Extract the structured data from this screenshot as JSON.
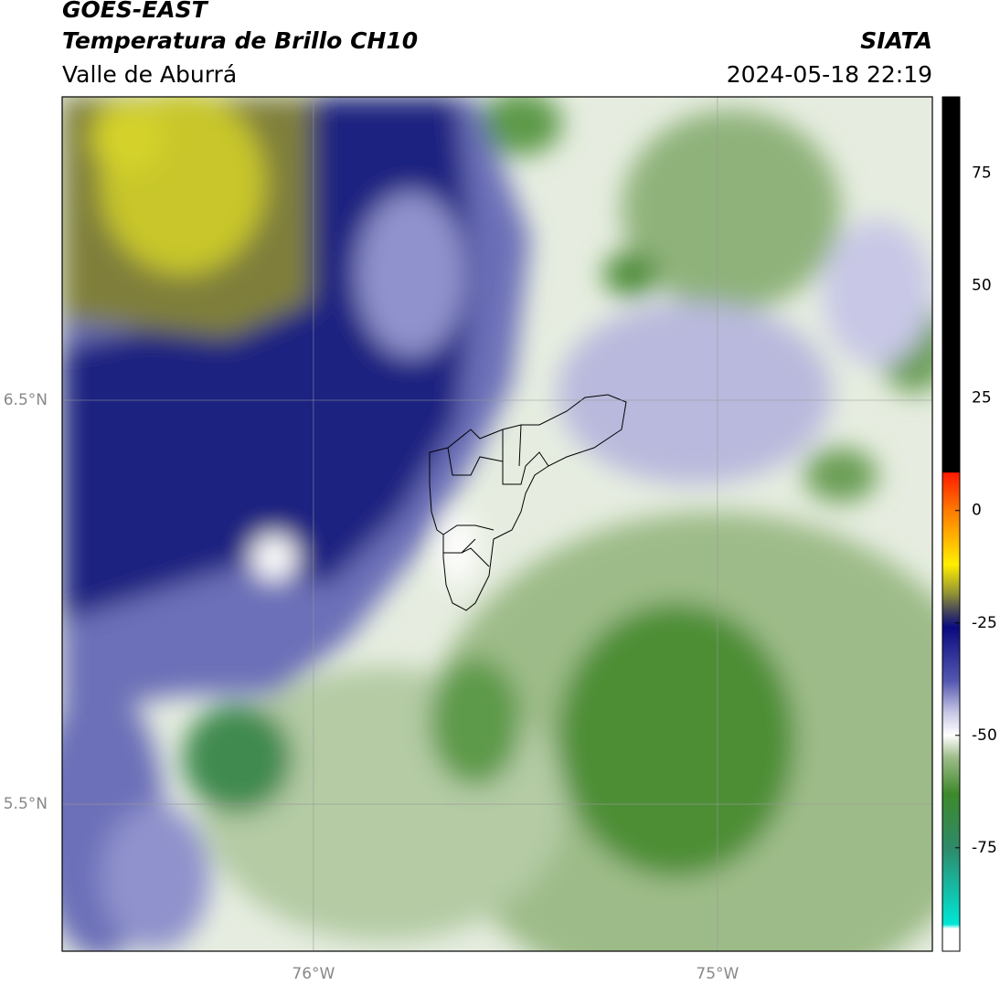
{
  "header": {
    "satellite": "GOES-EAST",
    "product": "Temperatura de Brillo CH10",
    "region": "Valle de Aburrá",
    "agency": "SIATA",
    "datetime": "2024-05-18 22:19"
  },
  "map": {
    "xlim": [
      -76.622,
      -74.468
    ],
    "ylim": [
      5.136,
      7.251
    ],
    "xticks": [
      {
        "value": -76,
        "label": "76°W"
      },
      {
        "value": -75,
        "label": "75°W"
      }
    ],
    "yticks": [
      {
        "value": 6.5,
        "label": "6.5°N"
      },
      {
        "value": 5.5,
        "label": "5.5°N"
      }
    ],
    "grid": true
  },
  "colorbar": {
    "lim": [
      -98,
      92
    ],
    "ticks": [
      75,
      50,
      25,
      0,
      -25,
      -50,
      -75
    ],
    "stops": [
      {
        "value": 92,
        "color": "#000000"
      },
      {
        "value": 8.5,
        "color": "#000000"
      },
      {
        "value": 8.4,
        "color": "#ff1a00"
      },
      {
        "value": 0,
        "color": "#ff7a00"
      },
      {
        "value": -12,
        "color": "#ffee00"
      },
      {
        "value": -18,
        "color": "#9a9a30"
      },
      {
        "value": -23,
        "color": "#3a3a60"
      },
      {
        "value": -26,
        "color": "#0a0a80"
      },
      {
        "value": -38,
        "color": "#5558b0"
      },
      {
        "value": -45,
        "color": "#c8c8e6"
      },
      {
        "value": -50,
        "color": "#ffffff"
      },
      {
        "value": -55,
        "color": "#9dbb88"
      },
      {
        "value": -63,
        "color": "#3d8a2a"
      },
      {
        "value": -75,
        "color": "#2e8a6a"
      },
      {
        "value": -92,
        "color": "#00e6d6"
      },
      {
        "value": -93,
        "color": "#ffffff"
      },
      {
        "value": -98,
        "color": "#ffffff"
      }
    ]
  }
}
